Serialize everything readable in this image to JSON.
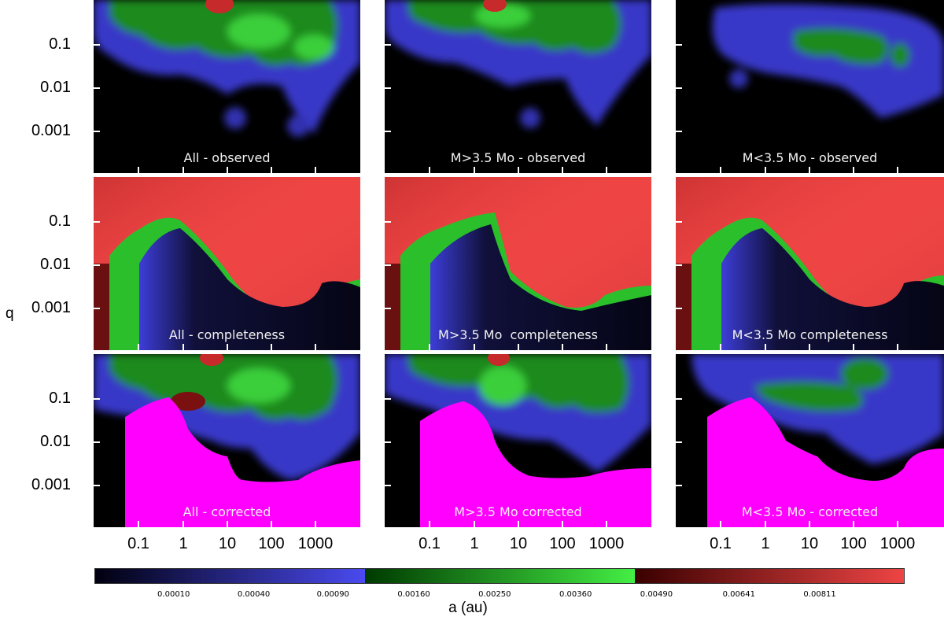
{
  "figure": {
    "xlabel": "a (au)",
    "ylabel": "q"
  },
  "colormap": {
    "segments": [
      {
        "name": "blue",
        "from": "#000000",
        "to": "#4a4af0"
      },
      {
        "name": "green",
        "from": "#003a00",
        "to": "#44ee44"
      },
      {
        "name": "red",
        "from": "#3a0000",
        "to": "#ee4444"
      }
    ],
    "masked_color": "#ff00ff",
    "tick_labels": [
      "0.00010",
      "0.00040",
      "0.00090",
      "0.00160",
      "0.00250",
      "0.00360",
      "0.00490",
      "0.00641",
      "0.00811"
    ]
  },
  "panels": [
    {
      "label": "All - observed",
      "row": "observed",
      "column": "All"
    },
    {
      "label": "M>3.5 Mo - observed",
      "row": "observed",
      "column": "M>3.5 Mo"
    },
    {
      "label": "M<3.5 Mo - observed",
      "row": "observed",
      "column": "M<3.5 Mo"
    },
    {
      "label": "All - completeness",
      "row": "completeness",
      "column": "All"
    },
    {
      "label": "M>3.5 Mo  completeness",
      "row": "completeness",
      "column": "M>3.5 Mo"
    },
    {
      "label": "M<3.5 Mo completeness",
      "row": "completeness",
      "column": "M<3.5 Mo"
    },
    {
      "label": "All - corrected",
      "row": "corrected",
      "column": "All"
    },
    {
      "label": "M>3.5 Mo corrected",
      "row": "corrected",
      "column": "M>3.5 Mo"
    },
    {
      "label": "M<3.5 Mo - corrected",
      "row": "corrected",
      "column": "M<3.5 Mo"
    }
  ],
  "chart_data": {
    "type": "heatmap",
    "xlabel": "a (au)",
    "ylabel": "q",
    "x_scale": "log",
    "y_scale": "log",
    "x_tick_labels": [
      "0.1",
      "1",
      "10",
      "100",
      "1000"
    ],
    "y_tick_labels": [
      "0.1",
      "0.01",
      "0.001"
    ],
    "colorbar_ticks": [
      0.0001,
      0.0004,
      0.0009,
      0.0016,
      0.0025,
      0.0036,
      0.0049,
      0.00641,
      0.00811
    ],
    "rows": [
      "observed",
      "completeness",
      "corrected"
    ],
    "columns": [
      "All",
      "M>3.5 Mo",
      "M<3.5 Mo"
    ]
  }
}
